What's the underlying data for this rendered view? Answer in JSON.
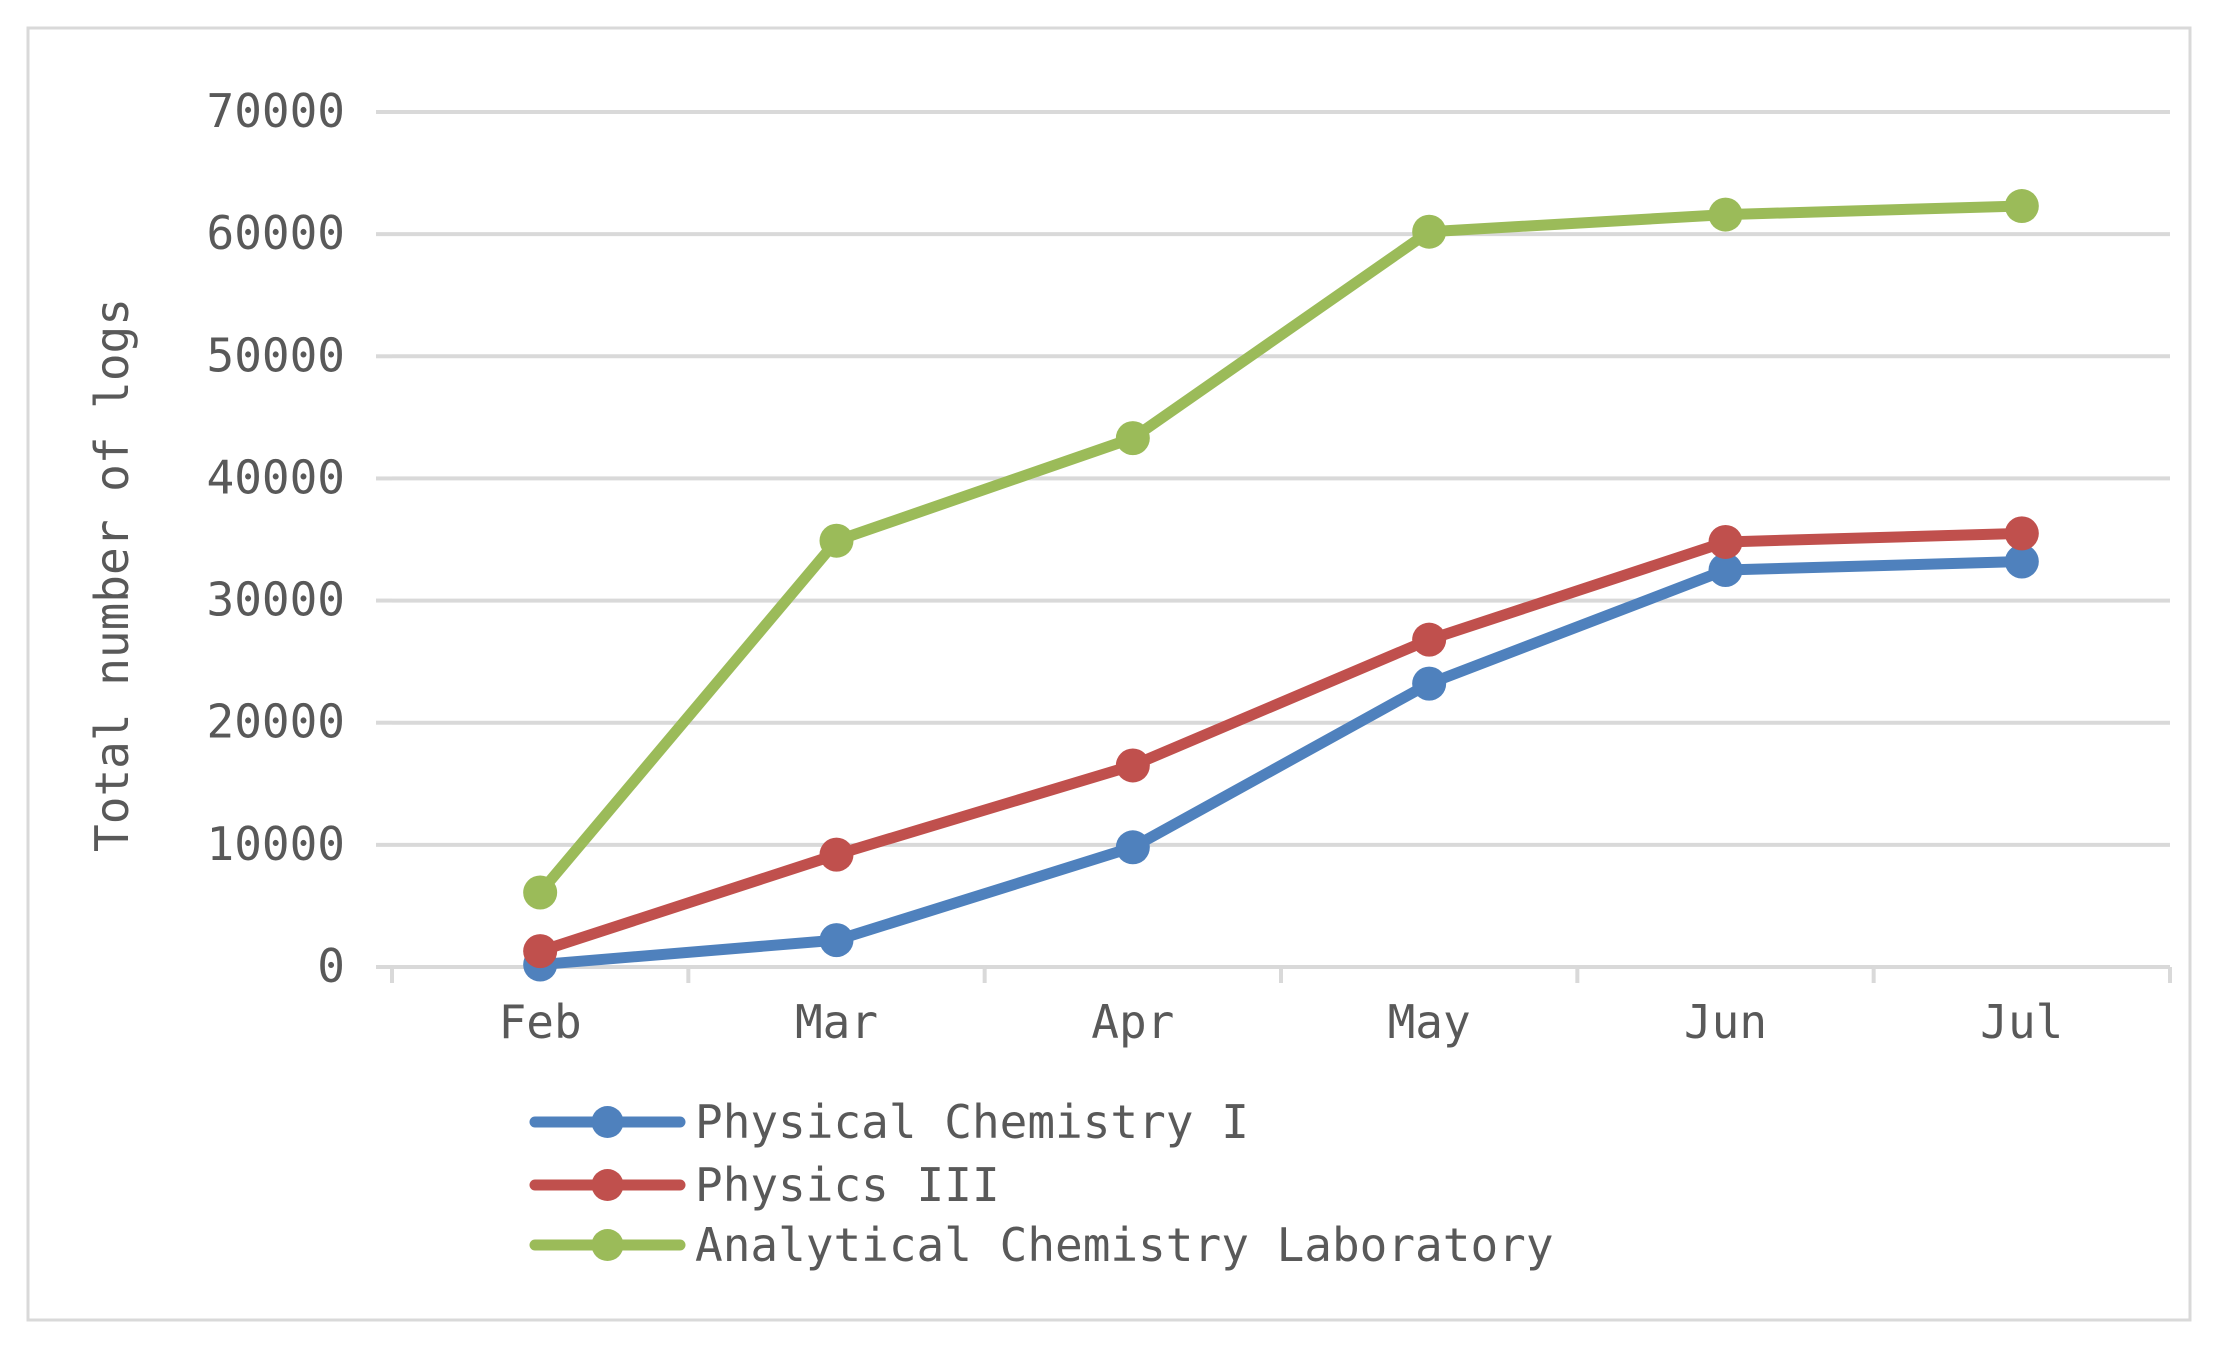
{
  "chart_data": {
    "type": "line",
    "title": "",
    "xlabel": "",
    "ylabel": "Total number of logs",
    "categories": [
      "Feb",
      "Mar",
      "Apr",
      "May",
      "Jun",
      "Jul"
    ],
    "ylim": [
      0,
      70000
    ],
    "yticks": [
      0,
      10000,
      20000,
      30000,
      40000,
      50000,
      60000,
      70000
    ],
    "grid": true,
    "legend": "bottom",
    "series": [
      {
        "name": "Physical Chemistry I",
        "color": "#4f81bd",
        "values": [
          200,
          2200,
          9800,
          23200,
          32500,
          33200
        ]
      },
      {
        "name": "Physics III",
        "color": "#c0504d",
        "values": [
          1300,
          9200,
          16500,
          26800,
          34800,
          35500
        ]
      },
      {
        "name": "Analytical Chemistry Laboratory",
        "color": "#9bbb59",
        "values": [
          6100,
          34900,
          43300,
          60200,
          61600,
          62300
        ]
      }
    ]
  }
}
